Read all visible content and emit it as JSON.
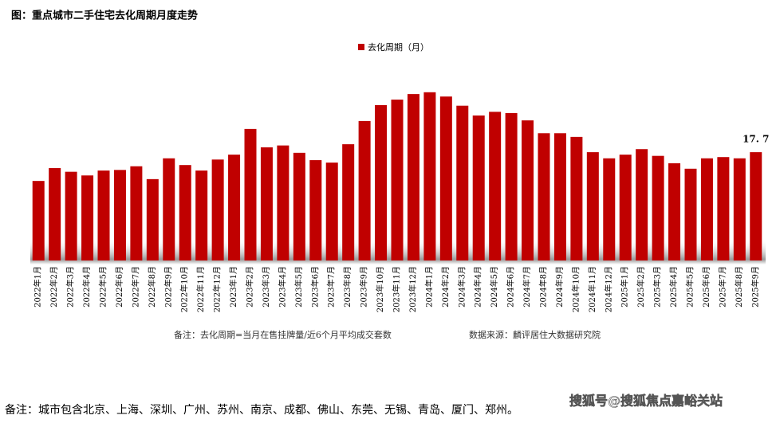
{
  "chart_data": {
    "type": "bar",
    "title": "图：重点城市二手住宅去化周期月度走势",
    "legend": "去化周期（月）",
    "series": [
      {
        "name": "去化周期（月）",
        "color": "#c00000",
        "values": [
          13.0,
          15.1,
          14.5,
          13.9,
          14.7,
          14.8,
          15.4,
          13.3,
          16.7,
          15.6,
          14.7,
          16.5,
          17.3,
          21.5,
          18.5,
          18.8,
          17.6,
          16.4,
          16.0,
          19.0,
          22.8,
          25.4,
          26.3,
          27.2,
          27.5,
          26.8,
          25.3,
          23.7,
          24.3,
          24.1,
          22.9,
          20.8,
          20.8,
          20.2,
          17.7,
          16.7,
          17.3,
          18.2,
          17.1,
          15.9,
          15.0,
          16.7,
          16.9,
          16.7,
          17.7
        ],
        "value_labels": [
          null,
          null,
          null,
          null,
          null,
          null,
          null,
          null,
          null,
          null,
          null,
          null,
          null,
          null,
          null,
          null,
          null,
          null,
          null,
          null,
          null,
          null,
          null,
          null,
          null,
          null,
          null,
          null,
          null,
          null,
          null,
          null,
          null,
          null,
          null,
          null,
          null,
          null,
          null,
          null,
          null,
          null,
          null,
          null,
          "17. 7"
        ]
      }
    ],
    "categories": [
      "2022年1月",
      "2022年2月",
      "2022年3月",
      "2022年4月",
      "2022年5月",
      "2022年6月",
      "2022年7月",
      "2022年8月",
      "2022年9月",
      "2022年10月",
      "2022年11月",
      "2022年12月",
      "2023年1月",
      "2023年2月",
      "2023年3月",
      "2023年4月",
      "2023年5月",
      "2023年6月",
      "2023年7月",
      "2023年8月",
      "2023年9月",
      "2023年10月",
      "2023年11月",
      "2023年12月",
      "2024年1月",
      "2024年2月",
      "2024年3月",
      "2024年4月",
      "2024年5月",
      "2024年6月",
      "2024年7月",
      "2024年8月",
      "2024年9月",
      "2024年10月",
      "2024年11月",
      "2024年12月",
      "2025年1月",
      "2025年2月",
      "2025年3月",
      "2025年4月",
      "2025年5月",
      "2025年6月",
      "2025年7月",
      "2025年8月",
      "2025年9月"
    ],
    "note": "备注：去化周期=当月在售挂牌量/近6个月平均成交套数",
    "source": "数据来源：麟评居住大数据研究院",
    "footer_note": "备注：城市包含北京、上海、深圳、广州、苏州、南京、成都、佛山、东莞、无锡、青岛、厦门、郑州。",
    "watermark": "搜狐号@搜狐焦点嘉峪关站"
  }
}
